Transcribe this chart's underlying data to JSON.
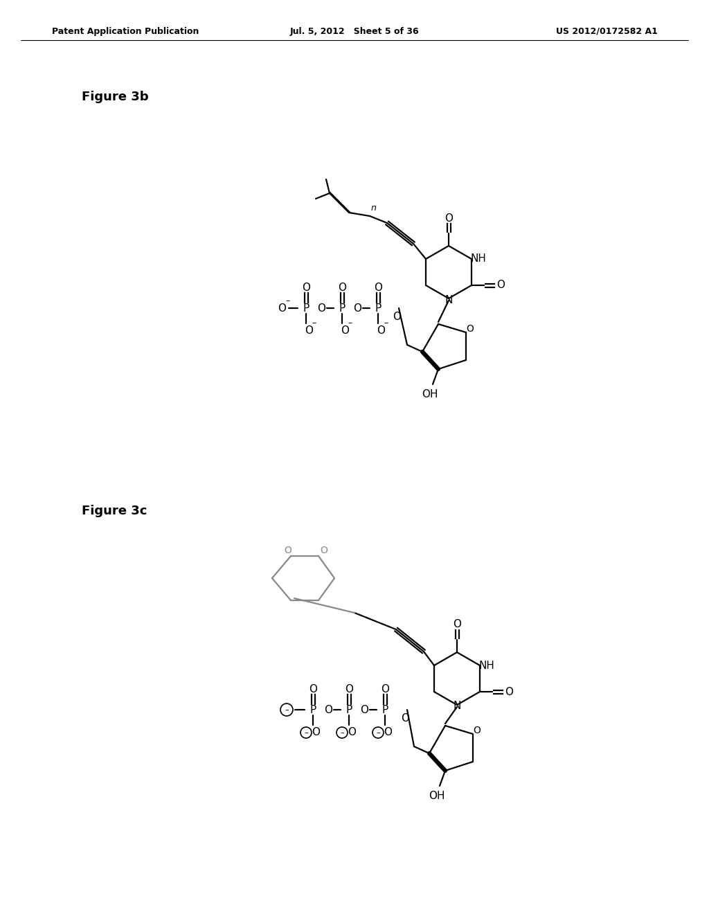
{
  "page_header_left": "Patent Application Publication",
  "page_header_center": "Jul. 5, 2012   Sheet 5 of 36",
  "page_header_right": "US 2012/0172582 A1",
  "fig3b_label": "Figure 3b",
  "fig3c_label": "Figure 3c",
  "background_color": "#ffffff",
  "text_color": "#000000",
  "line_color": "#000000",
  "line_width": 1.6,
  "font_size_header": 9,
  "font_size_fig_label": 13,
  "font_size_atom": 11
}
